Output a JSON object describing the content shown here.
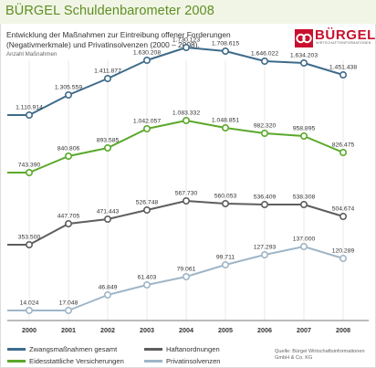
{
  "header": {
    "title": "BÜRGEL Schuldenbarometer 2008"
  },
  "subtitle": "Entwicklung der Maßnahmen zur Eintreibung offener Forderungen (Negativmerkmale) und Privatinsolvenzen (2000 – 2008).",
  "brand": {
    "name": "BÜRGEL",
    "tagline": "WIRTSCHAFTSINFORMATIONEN"
  },
  "source": "Quelle: Bürgel Wirtschaftsinformationen GmbH & Co. KG",
  "chart_data": {
    "type": "line",
    "title": "",
    "ylabel": "Anzahl Maßnahmen",
    "xlabel": "",
    "x": [
      "2000",
      "2001",
      "2002",
      "2003",
      "2004",
      "2005",
      "2006",
      "2007",
      "2008"
    ],
    "ylim": [
      0,
      1800000
    ],
    "grid": true,
    "legend_position": "bottom",
    "series": [
      {
        "name": "Zwangsmaßnahmen gesamt",
        "color": "#3e6b8a",
        "values": [
          1110914,
          1305559,
          1411877,
          1630208,
          1730123,
          1708615,
          1646022,
          1634203,
          1451438
        ],
        "labels": [
          "1.110.914",
          "1.305.559",
          "1.411.877",
          "1.630.208",
          "1.730.123",
          "1.708.615",
          "1.646.022",
          "1.634.203",
          "1.451.438"
        ]
      },
      {
        "name": "Eidesstattliche Versicherungen",
        "color": "#5aa82a",
        "values": [
          743390,
          840806,
          893585,
          1042057,
          1083332,
          1048851,
          982320,
          958895,
          826475
        ],
        "labels": [
          "743.390",
          "840.806",
          "893.585",
          "1.042.057",
          "1.083.332",
          "1.048.851",
          "982.320",
          "958.895",
          "826.475"
        ]
      },
      {
        "name": "Haftanordnungen",
        "color": "#5e5e5e",
        "values": [
          353500,
          447705,
          471443,
          526748,
          567730,
          560053,
          536409,
          538308,
          504674
        ],
        "labels": [
          "353.500",
          "447.705",
          "471.443",
          "526.748",
          "567.730",
          "560.053",
          "536.409",
          "538.308",
          "504.674"
        ]
      },
      {
        "name": "Privatinsolvenzen",
        "color": "#9fb6c8",
        "values": [
          14024,
          17048,
          46849,
          61403,
          79061,
          99711,
          127293,
          137000,
          120289
        ],
        "labels": [
          "14.024",
          "17.048",
          "46.849",
          "61.403",
          "79.061",
          "99.711",
          "127.293",
          "137.000",
          "120.289"
        ]
      }
    ]
  }
}
